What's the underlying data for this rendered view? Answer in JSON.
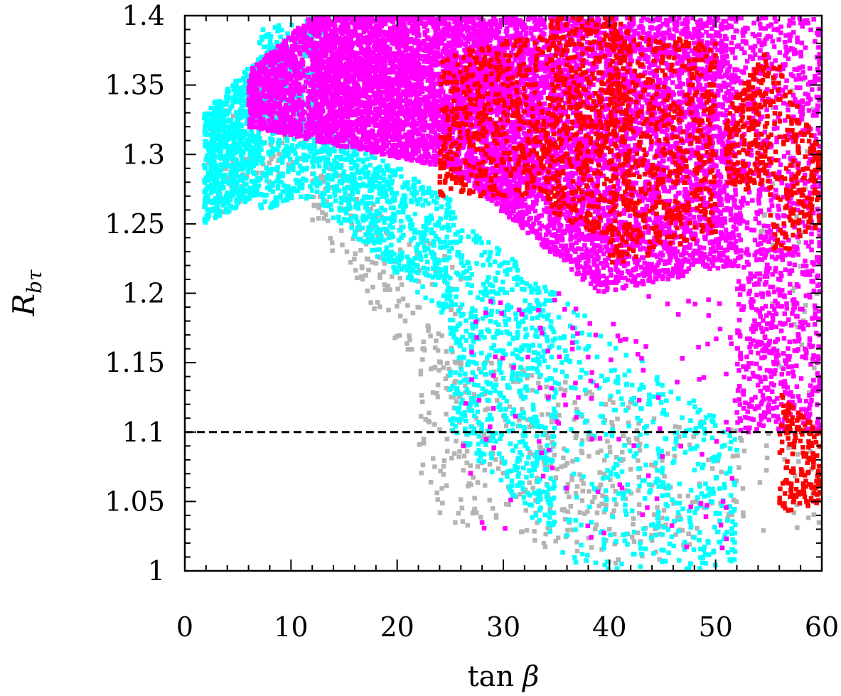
{
  "chart_data": {
    "type": "scatter",
    "xlabel": "tan β",
    "ylabel": "R_bτ",
    "ylabel_main": "R",
    "ylabel_sub": "bτ",
    "xlabel_fn": "tan",
    "xlabel_sym": "β",
    "xlim": [
      0,
      60
    ],
    "ylim": [
      1.0,
      1.4
    ],
    "x_ticks": [
      0,
      10,
      20,
      30,
      40,
      50,
      60
    ],
    "x_tick_labels": [
      "0",
      "10",
      "20",
      "30",
      "40",
      "50",
      "60"
    ],
    "y_ticks": [
      1.0,
      1.05,
      1.1,
      1.15,
      1.2,
      1.25,
      1.3,
      1.35,
      1.4
    ],
    "y_tick_labels": [
      "1",
      "1.05",
      "1.1",
      "1.15",
      "1.2",
      "1.25",
      "1.3",
      "1.35",
      "1.4"
    ],
    "grid": false,
    "reference_line": {
      "y": 1.1,
      "style": "dashed",
      "color": "#000000"
    },
    "series": [
      {
        "color": "#b4b4b4",
        "regions": [
          {
            "x_from": 2,
            "x_to": 12,
            "y_lo_start": 1.25,
            "y_lo_end": 1.3,
            "y_hi_start": 1.32,
            "y_hi_end": 1.4,
            "count": 150
          },
          {
            "x_from": 12,
            "x_to": 26,
            "y_lo_start": 1.25,
            "y_lo_end": 1.1,
            "y_hi_start": 1.3,
            "y_hi_end": 1.22,
            "count": 180
          },
          {
            "x_from": 22,
            "x_to": 43,
            "y_lo_start": 1.04,
            "y_lo_end": 1.0,
            "y_hi_start": 1.17,
            "y_hi_end": 1.12,
            "count": 360
          },
          {
            "x_from": 43,
            "x_to": 53,
            "y_lo_start": 1.0,
            "y_lo_end": 1.04,
            "y_hi_start": 1.12,
            "y_hi_end": 1.1,
            "count": 80
          },
          {
            "x_from": 54,
            "x_to": 60,
            "y_lo_start": 1.02,
            "y_lo_end": 1.03,
            "y_hi_start": 1.38,
            "y_hi_end": 1.35,
            "count": 90
          }
        ]
      },
      {
        "color": "#00ffff",
        "regions": [
          {
            "x_from": 1.8,
            "x_to": 7,
            "y_lo_start": 1.25,
            "y_lo_end": 1.27,
            "y_hi_start": 1.33,
            "y_hi_end": 1.37,
            "count": 700
          },
          {
            "x_from": 7,
            "x_to": 13,
            "y_lo_start": 1.26,
            "y_lo_end": 1.27,
            "y_hi_start": 1.39,
            "y_hi_end": 1.4,
            "count": 500
          },
          {
            "x_from": 13,
            "x_to": 25,
            "y_lo_start": 1.26,
            "y_lo_end": 1.18,
            "y_hi_start": 1.32,
            "y_hi_end": 1.27,
            "count": 650
          },
          {
            "x_from": 25,
            "x_to": 35,
            "y_lo_start": 1.1,
            "y_lo_end": 1.02,
            "y_hi_start": 1.26,
            "y_hi_end": 1.2,
            "count": 650
          },
          {
            "x_from": 35,
            "x_to": 52,
            "y_lo_start": 1.0,
            "y_lo_end": 1.0,
            "y_hi_start": 1.2,
            "y_hi_end": 1.1,
            "count": 420
          }
        ]
      },
      {
        "color": "#ff00ff",
        "regions": [
          {
            "x_from": 6,
            "x_to": 12,
            "y_lo_start": 1.32,
            "y_lo_end": 1.31,
            "y_hi_start": 1.36,
            "y_hi_end": 1.4,
            "count": 700
          },
          {
            "x_from": 12,
            "x_to": 25,
            "y_lo_start": 1.31,
            "y_lo_end": 1.29,
            "y_hi_start": 1.4,
            "y_hi_end": 1.4,
            "count": 2600
          },
          {
            "x_from": 25,
            "x_to": 39,
            "y_lo_start": 1.29,
            "y_lo_end": 1.2,
            "y_hi_start": 1.4,
            "y_hi_end": 1.4,
            "count": 3000
          },
          {
            "x_from": 39,
            "x_to": 52,
            "y_lo_start": 1.2,
            "y_lo_end": 1.22,
            "y_hi_start": 1.4,
            "y_hi_end": 1.4,
            "count": 2300
          },
          {
            "x_from": 52,
            "x_to": 60,
            "y_lo_start": 1.1,
            "y_lo_end": 1.1,
            "y_hi_start": 1.4,
            "y_hi_end": 1.4,
            "count": 1000
          },
          {
            "x_from": 26,
            "x_to": 52,
            "y_lo_start": 1.03,
            "y_lo_end": 1.01,
            "y_hi_start": 1.2,
            "y_hi_end": 1.2,
            "count": 130
          }
        ]
      },
      {
        "color": "#ff0000",
        "regions": [
          {
            "x_from": 24,
            "x_to": 34,
            "y_lo_start": 1.27,
            "y_lo_end": 1.27,
            "y_hi_start": 1.37,
            "y_hi_end": 1.39,
            "count": 450
          },
          {
            "x_from": 34,
            "x_to": 42,
            "y_lo_start": 1.26,
            "y_lo_end": 1.23,
            "y_hi_start": 1.4,
            "y_hi_end": 1.4,
            "count": 550
          },
          {
            "x_from": 40,
            "x_to": 50,
            "y_lo_start": 1.22,
            "y_lo_end": 1.24,
            "y_hi_start": 1.39,
            "y_hi_end": 1.38,
            "count": 550
          },
          {
            "x_from": 51,
            "x_to": 55,
            "y_lo_start": 1.27,
            "y_lo_end": 1.28,
            "y_hi_start": 1.33,
            "y_hi_end": 1.38,
            "count": 200
          },
          {
            "x_from": 55,
            "x_to": 60,
            "y_lo_start": 1.22,
            "y_lo_end": 1.25,
            "y_hi_start": 1.38,
            "y_hi_end": 1.3,
            "count": 200
          },
          {
            "x_from": 56,
            "x_to": 60,
            "y_lo_start": 1.04,
            "y_lo_end": 1.05,
            "y_hi_start": 1.13,
            "y_hi_end": 1.1,
            "count": 170
          }
        ]
      }
    ]
  }
}
